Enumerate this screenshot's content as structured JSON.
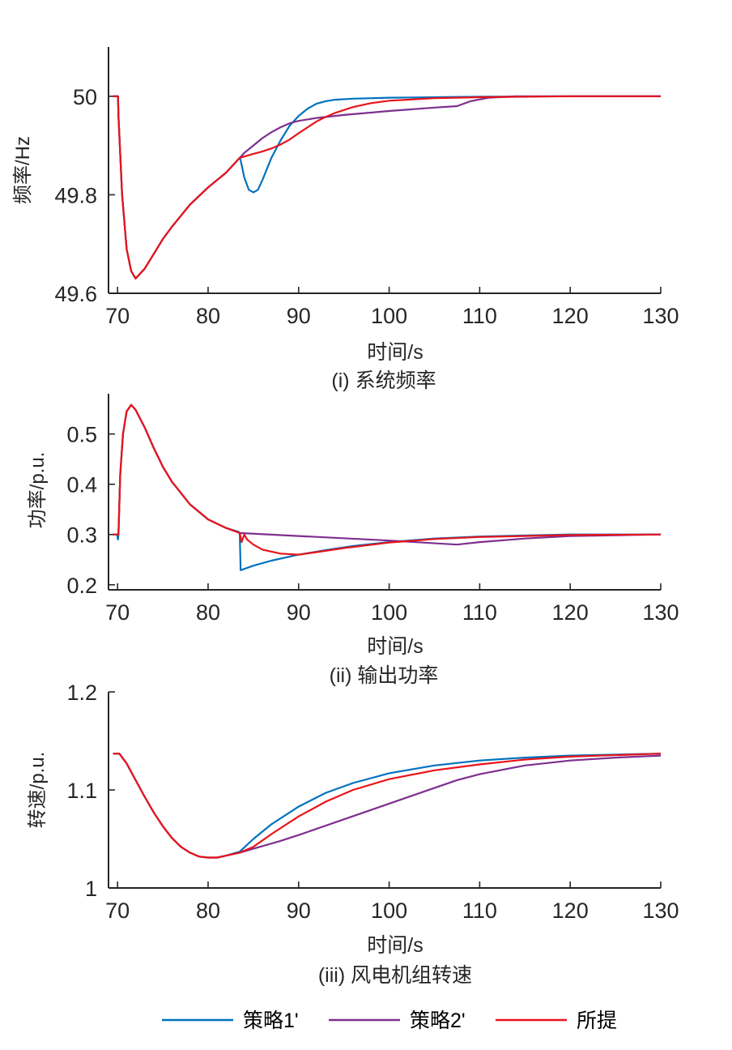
{
  "legend": {
    "placement": "bottom",
    "entries": [
      {
        "label": "策略1'",
        "color": "#0072BD"
      },
      {
        "label": "策略2'",
        "color": "#7E2F8E"
      },
      {
        "label": "所提",
        "color": "#E8141B"
      }
    ]
  },
  "chart_data": [
    {
      "type": "line",
      "caption": "(i) 系统频率",
      "xlabel": "时间/s",
      "ylabel": "频率/Hz",
      "xlim": [
        69,
        130
      ],
      "ylim": [
        49.6,
        50.1
      ],
      "xticks": [
        70,
        80,
        90,
        100,
        110,
        120,
        130
      ],
      "yticks": [
        49.6,
        49.8,
        50
      ],
      "ytick_labels": [
        "49.6",
        "49.8",
        "50"
      ],
      "series": [
        {
          "name": "策略1'",
          "color": "#0072BD",
          "x": [
            69.5,
            70.05,
            70.1,
            70.5,
            71,
            71.5,
            72,
            73,
            74,
            75,
            76,
            78,
            80,
            82,
            83.5,
            83.6,
            84,
            84.5,
            85,
            85.5,
            86,
            87,
            88,
            89,
            90,
            91,
            92,
            93,
            94,
            96,
            100,
            105,
            110,
            120,
            130
          ],
          "y": [
            50,
            50,
            49.96,
            49.8,
            49.69,
            49.645,
            49.63,
            49.65,
            49.68,
            49.71,
            49.735,
            49.78,
            49.815,
            49.845,
            49.875,
            49.87,
            49.835,
            49.81,
            49.805,
            49.81,
            49.83,
            49.875,
            49.91,
            49.94,
            49.96,
            49.975,
            49.985,
            49.99,
            49.993,
            49.995,
            49.997,
            49.998,
            49.999,
            50,
            50
          ]
        },
        {
          "name": "策略2'",
          "color": "#7E2F8E",
          "x": [
            69.5,
            70.05,
            70.1,
            70.5,
            71,
            71.5,
            72,
            73,
            74,
            75,
            76,
            78,
            80,
            82,
            83.5,
            84,
            85,
            86,
            87,
            88,
            89,
            90,
            92,
            95,
            100,
            105,
            107.5,
            109,
            111,
            114,
            120,
            130
          ],
          "y": [
            50,
            50,
            49.96,
            49.8,
            49.69,
            49.645,
            49.63,
            49.65,
            49.68,
            49.71,
            49.735,
            49.78,
            49.815,
            49.845,
            49.875,
            49.885,
            49.9,
            49.915,
            49.927,
            49.937,
            49.945,
            49.95,
            49.956,
            49.962,
            49.97,
            49.977,
            49.98,
            49.99,
            49.997,
            50,
            50,
            50
          ]
        },
        {
          "name": "所提",
          "color": "#E8141B",
          "x": [
            69.5,
            70.05,
            70.1,
            70.5,
            71,
            71.5,
            72,
            73,
            74,
            75,
            76,
            78,
            80,
            82,
            83.5,
            85,
            86,
            87,
            88,
            89,
            90,
            91,
            92,
            93,
            94,
            95,
            96,
            98,
            100,
            105,
            110,
            120,
            130
          ],
          "y": [
            50,
            50,
            49.96,
            49.8,
            49.69,
            49.645,
            49.63,
            49.65,
            49.68,
            49.71,
            49.735,
            49.78,
            49.815,
            49.845,
            49.875,
            49.883,
            49.888,
            49.894,
            49.902,
            49.912,
            49.925,
            49.937,
            49.949,
            49.958,
            49.966,
            49.972,
            49.978,
            49.986,
            49.991,
            49.996,
            49.998,
            50,
            50
          ]
        }
      ]
    },
    {
      "type": "line",
      "caption": "(ii) 输出功率",
      "xlabel": "时间/s",
      "ylabel": "功率/p.u.",
      "xlim": [
        69,
        130
      ],
      "ylim": [
        0.19,
        0.58
      ],
      "xticks": [
        70,
        80,
        90,
        100,
        110,
        120,
        130
      ],
      "yticks": [
        0.2,
        0.3,
        0.4,
        0.5
      ],
      "ytick_labels": [
        "0.2",
        "0.3",
        "0.4",
        "0.5"
      ],
      "series": [
        {
          "name": "策略1'",
          "color": "#0072BD",
          "x": [
            69.5,
            69.95,
            70.05,
            70.1,
            70.3,
            70.6,
            71,
            71.5,
            72,
            73,
            74,
            75,
            76,
            78,
            80,
            82,
            83.4,
            83.5,
            83.6,
            85,
            87,
            90,
            93,
            96,
            100,
            105,
            110,
            120,
            130
          ],
          "y": [
            0.3,
            0.3,
            0.29,
            0.3,
            0.42,
            0.5,
            0.545,
            0.558,
            0.548,
            0.513,
            0.472,
            0.435,
            0.405,
            0.36,
            0.33,
            0.313,
            0.305,
            0.3,
            0.229,
            0.238,
            0.248,
            0.26,
            0.269,
            0.277,
            0.285,
            0.292,
            0.296,
            0.3,
            0.3
          ]
        },
        {
          "name": "策略2'",
          "color": "#7E2F8E",
          "x": [
            69.5,
            69.95,
            70.05,
            70.1,
            70.3,
            70.6,
            71,
            71.5,
            72,
            73,
            74,
            75,
            76,
            78,
            80,
            82,
            83.5,
            90,
            100,
            107.5,
            110,
            115,
            120,
            130
          ],
          "y": [
            0.3,
            0.3,
            0.3,
            0.3,
            0.42,
            0.5,
            0.545,
            0.558,
            0.548,
            0.513,
            0.472,
            0.435,
            0.405,
            0.36,
            0.33,
            0.313,
            0.303,
            0.297,
            0.288,
            0.28,
            0.285,
            0.292,
            0.297,
            0.3
          ]
        },
        {
          "name": "所提",
          "color": "#E8141B",
          "x": [
            69.5,
            69.95,
            70.05,
            70.1,
            70.3,
            70.6,
            71,
            71.5,
            72,
            73,
            74,
            75,
            76,
            78,
            80,
            82,
            83.5,
            83.7,
            84,
            84.3,
            85,
            86,
            88,
            90,
            92,
            95,
            100,
            105,
            110,
            120,
            130
          ],
          "y": [
            0.3,
            0.3,
            0.3,
            0.3,
            0.42,
            0.5,
            0.545,
            0.558,
            0.548,
            0.513,
            0.472,
            0.435,
            0.405,
            0.36,
            0.33,
            0.313,
            0.303,
            0.285,
            0.3,
            0.29,
            0.28,
            0.27,
            0.262,
            0.26,
            0.265,
            0.273,
            0.284,
            0.291,
            0.295,
            0.299,
            0.3
          ]
        }
      ]
    },
    {
      "type": "line",
      "caption": "(iii) 风电机组转速",
      "xlabel": "时间/s",
      "ylabel": "转速/p.u.",
      "xlim": [
        69,
        130
      ],
      "ylim": [
        1.0,
        1.2
      ],
      "xticks": [
        70,
        80,
        90,
        100,
        110,
        120,
        130
      ],
      "yticks": [
        1.0,
        1.1,
        1.2
      ],
      "ytick_labels": [
        "1",
        "1.1",
        "1.2"
      ],
      "series": [
        {
          "name": "策略1'",
          "color": "#0072BD",
          "x": [
            69.5,
            70.2,
            71,
            72,
            73,
            74,
            75,
            76,
            77,
            78,
            79,
            80,
            81,
            82,
            83.5,
            85,
            87,
            90,
            93,
            96,
            100,
            105,
            110,
            115,
            120,
            130
          ],
          "y": [
            1.137,
            1.137,
            1.127,
            1.11,
            1.093,
            1.077,
            1.063,
            1.051,
            1.042,
            1.036,
            1.032,
            1.031,
            1.031,
            1.033,
            1.037,
            1.05,
            1.065,
            1.083,
            1.097,
            1.107,
            1.117,
            1.125,
            1.13,
            1.133,
            1.135,
            1.137
          ]
        },
        {
          "name": "策略2'",
          "color": "#7E2F8E",
          "x": [
            69.5,
            70.2,
            71,
            72,
            73,
            74,
            75,
            76,
            77,
            78,
            79,
            80,
            81,
            82,
            83.5,
            85,
            88,
            90,
            95,
            100,
            105,
            107.5,
            110,
            115,
            120,
            125,
            130
          ],
          "y": [
            1.137,
            1.137,
            1.127,
            1.11,
            1.093,
            1.077,
            1.063,
            1.051,
            1.042,
            1.036,
            1.032,
            1.031,
            1.031,
            1.033,
            1.036,
            1.04,
            1.048,
            1.054,
            1.07,
            1.086,
            1.102,
            1.11,
            1.116,
            1.125,
            1.13,
            1.133,
            1.135
          ]
        },
        {
          "name": "所提",
          "color": "#E8141B",
          "x": [
            69.5,
            70.2,
            71,
            72,
            73,
            74,
            75,
            76,
            77,
            78,
            79,
            80,
            81,
            82,
            83.5,
            85,
            87,
            90,
            93,
            96,
            100,
            105,
            110,
            115,
            120,
            130
          ],
          "y": [
            1.137,
            1.137,
            1.127,
            1.11,
            1.093,
            1.077,
            1.063,
            1.051,
            1.042,
            1.036,
            1.032,
            1.031,
            1.031,
            1.033,
            1.036,
            1.042,
            1.055,
            1.073,
            1.088,
            1.1,
            1.111,
            1.12,
            1.126,
            1.131,
            1.134,
            1.137
          ]
        }
      ]
    }
  ]
}
